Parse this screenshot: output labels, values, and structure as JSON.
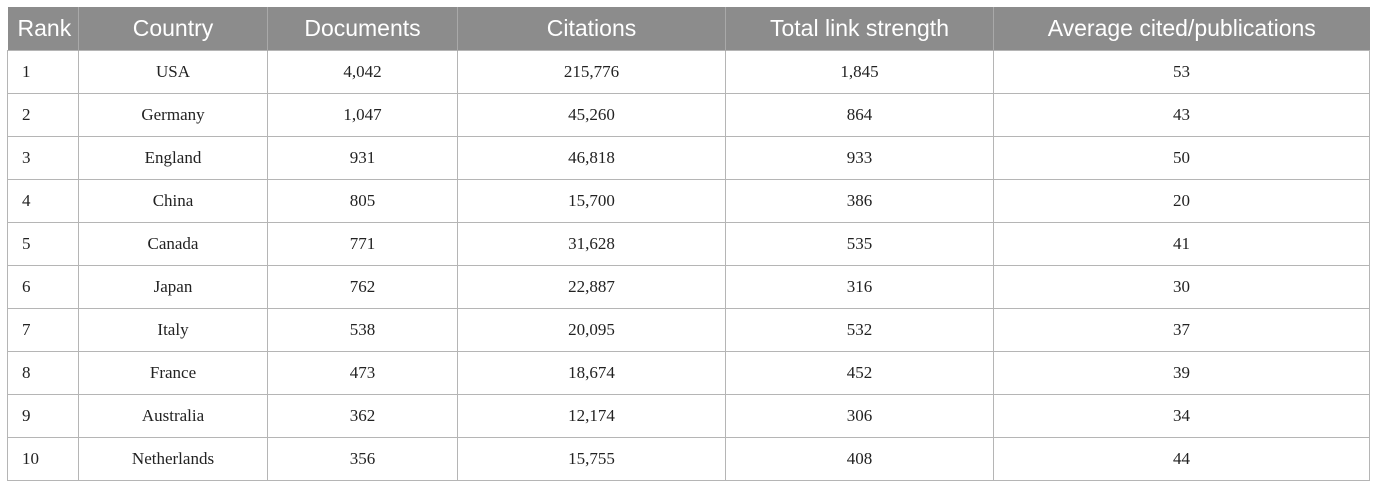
{
  "table": {
    "headers": [
      "Rank",
      "Country",
      "Documents",
      "Citations",
      "Total link strength",
      "Average cited/publications"
    ],
    "rows": [
      [
        "1",
        "USA",
        "4,042",
        "215,776",
        "1,845",
        "53"
      ],
      [
        "2",
        "Germany",
        "1,047",
        "45,260",
        "864",
        "43"
      ],
      [
        "3",
        "England",
        "931",
        "46,818",
        "933",
        "50"
      ],
      [
        "4",
        "China",
        "805",
        "15,700",
        "386",
        "20"
      ],
      [
        "5",
        "Canada",
        "771",
        "31,628",
        "535",
        "41"
      ],
      [
        "6",
        "Japan",
        "762",
        "22,887",
        "316",
        "30"
      ],
      [
        "7",
        "Italy",
        "538",
        "20,095",
        "532",
        "37"
      ],
      [
        "8",
        "France",
        "473",
        "18,674",
        "452",
        "39"
      ],
      [
        "9",
        "Australia",
        "362",
        "12,174",
        "306",
        "34"
      ],
      [
        "10",
        "Netherlands",
        "356",
        "15,755",
        "408",
        "44"
      ]
    ]
  },
  "colors": {
    "header_background": "#8c8c8c",
    "header_text": "#ffffff",
    "grid_line": "#b5b5b5"
  }
}
